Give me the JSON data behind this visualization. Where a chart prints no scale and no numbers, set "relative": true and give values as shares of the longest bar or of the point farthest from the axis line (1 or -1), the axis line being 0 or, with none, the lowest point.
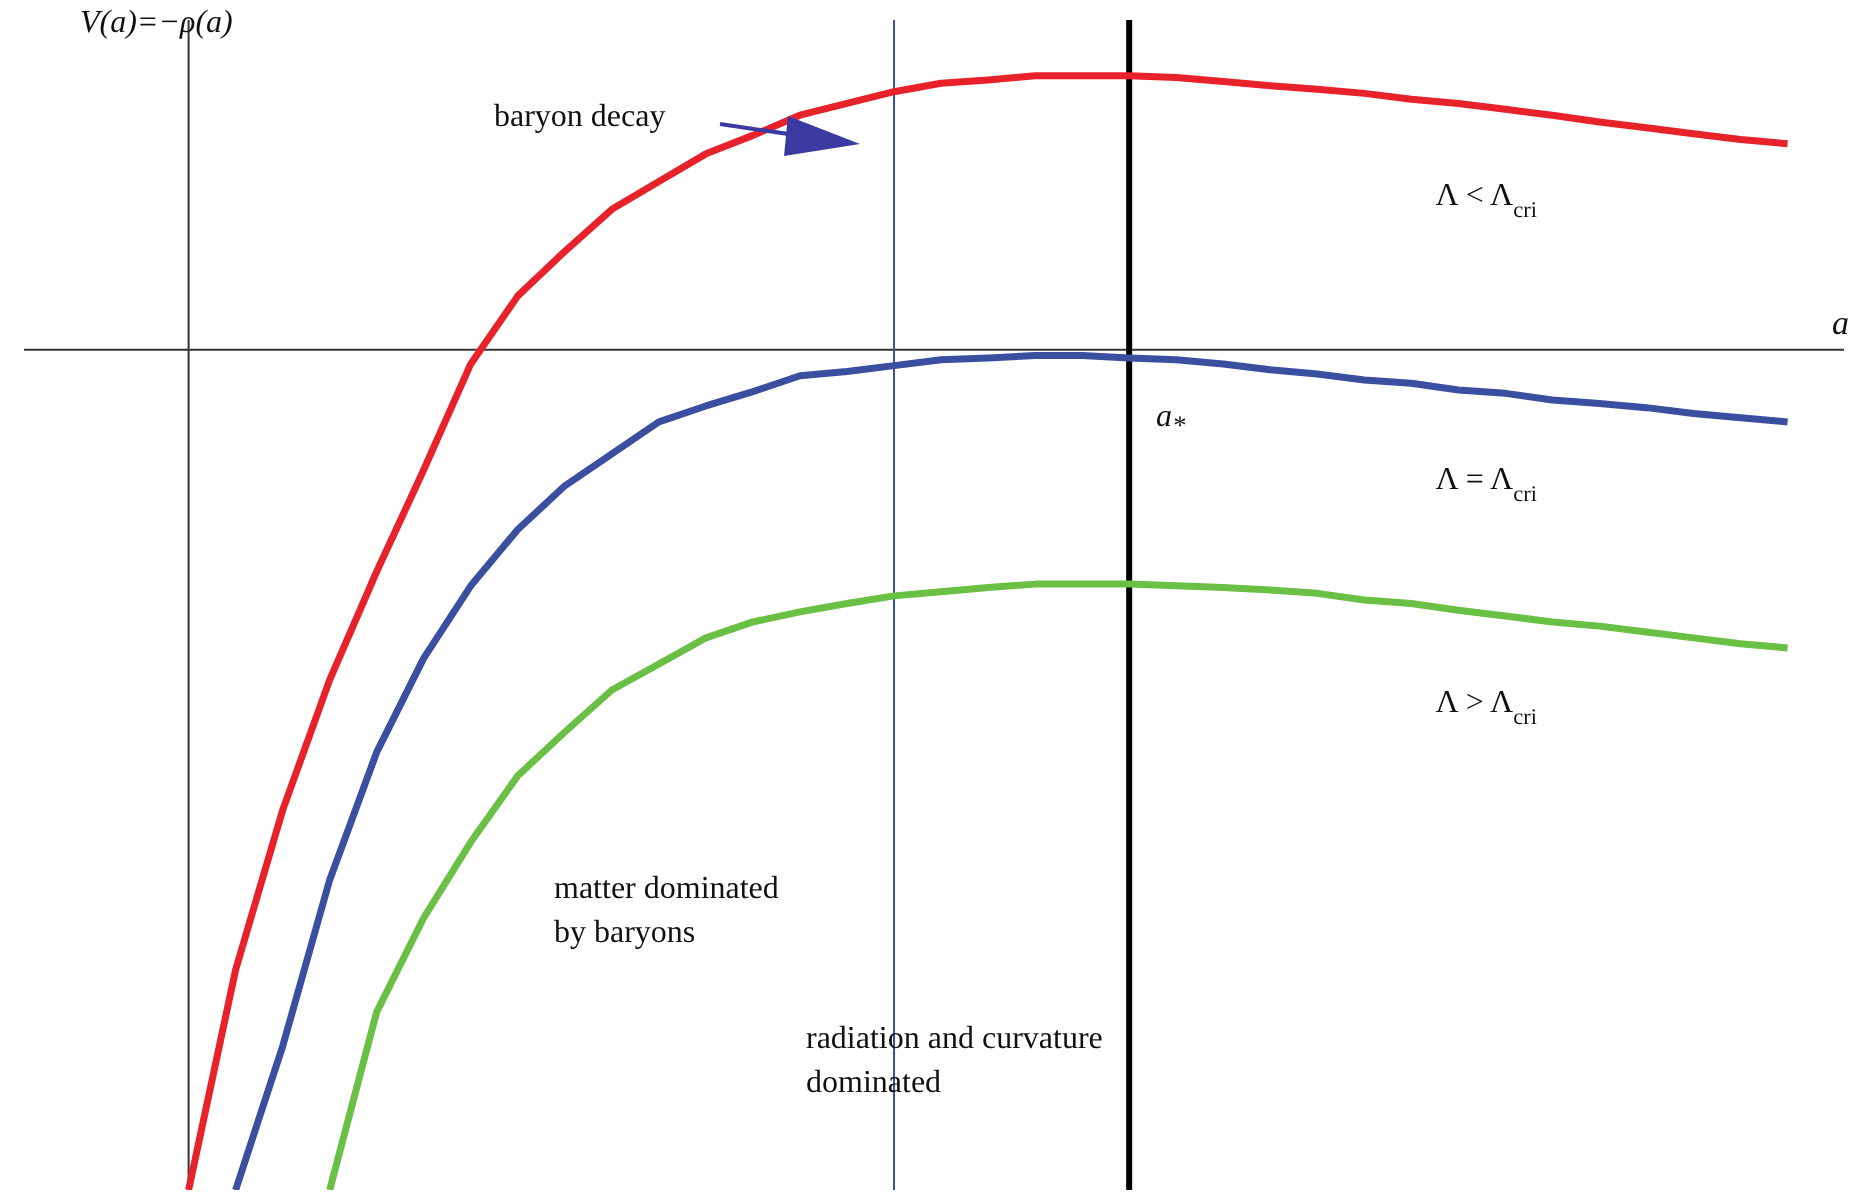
{
  "chart_data": {
    "type": "line",
    "relative": true,
    "ylabel": "V(a)=−ρ(a)",
    "xlabel": "a",
    "tick_labels": false,
    "marker": "none",
    "line_style": "solid",
    "categories": [
      null,
      null,
      null,
      null,
      null,
      null,
      null,
      null,
      null,
      null,
      null,
      null,
      null,
      null,
      null,
      null,
      null,
      null,
      null,
      null,
      null,
      null,
      null,
      null,
      null,
      null,
      null,
      null,
      null,
      null,
      null,
      null,
      null,
      null,
      null
    ],
    "series": [
      {
        "name": "Λ < Λ$_{cri}$",
        "color": "#e8222a",
        "values": [
          -1,
          -0.738,
          -0.548,
          -0.393,
          -0.264,
          -0.143,
          -0.017,
          0.064,
          0.117,
          0.167,
          0.2,
          0.233,
          0.255,
          0.279,
          0.293,
          0.307,
          0.317,
          0.321,
          0.326,
          0.326,
          0.326,
          0.324,
          0.319,
          0.314,
          0.31,
          0.305,
          0.298,
          0.293,
          0.286,
          0.279,
          0.271,
          0.264,
          0.257,
          0.25,
          0.245
        ]
      },
      {
        "name": "Λ = Λ$_{cri}$",
        "color": "#3a4fa0",
        "values": [
          null,
          -1,
          -0.829,
          -0.631,
          -0.479,
          -0.367,
          -0.281,
          -0.214,
          -0.162,
          -0.124,
          -0.086,
          -0.067,
          -0.05,
          -0.031,
          -0.026,
          -0.019,
          -0.012,
          -0.01,
          -0.007,
          -0.007,
          -0.01,
          -0.012,
          -0.017,
          -0.024,
          -0.029,
          -0.036,
          -0.04,
          -0.048,
          -0.052,
          -0.06,
          -0.064,
          -0.069,
          -0.076,
          -0.081,
          -0.086
        ]
      },
      {
        "name": "Λ > Λ$_{cri}$",
        "color": "#6abf45",
        "values": [
          null,
          null,
          null,
          -1,
          -0.788,
          -0.676,
          -0.586,
          -0.507,
          -0.455,
          -0.405,
          -0.374,
          -0.343,
          -0.324,
          -0.312,
          -0.302,
          -0.293,
          -0.288,
          -0.283,
          -0.279,
          -0.279,
          -0.279,
          -0.281,
          -0.283,
          -0.286,
          -0.29,
          -0.298,
          -0.302,
          -0.31,
          -0.317,
          -0.324,
          -0.329,
          -0.336,
          -0.343,
          -0.35,
          -0.355
        ]
      }
    ],
    "annotations": [
      "baryon decay",
      "matter dominated\nby baryons",
      "radiation and curvature\ndominated",
      "a$_{*}$"
    ]
  }
}
